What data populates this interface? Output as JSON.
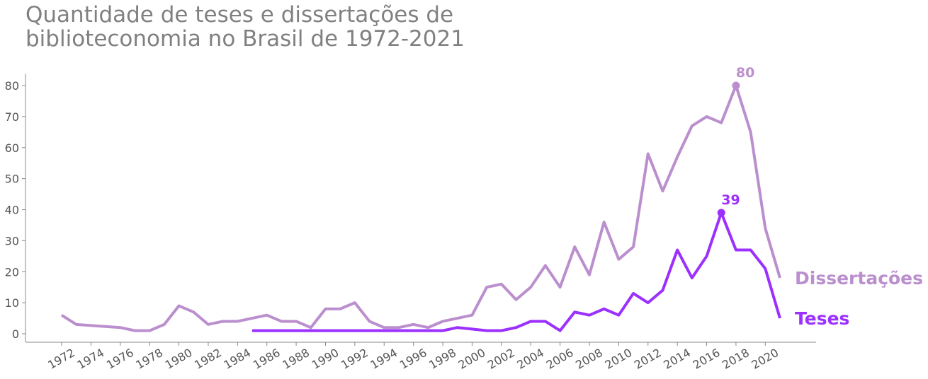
{
  "chart_data": {
    "type": "line",
    "title": "Quantidade de teses e dissertações de biblioteconomia no Brasil de 1972-2021",
    "xlabel": "",
    "ylabel": "",
    "xlim": [
      1972,
      2021
    ],
    "ylim": [
      0,
      80
    ],
    "yticks": [
      0,
      10,
      20,
      30,
      40,
      50,
      60,
      70,
      80
    ],
    "xticks": [
      "1972",
      "1974",
      "1976",
      "1978",
      "1980",
      "1982",
      "1984",
      "1986",
      "1988",
      "1990",
      "1992",
      "1994",
      "1996",
      "1998",
      "2000",
      "2002",
      "2004",
      "2006",
      "2008",
      "2010",
      "2012",
      "2014",
      "2016",
      "2018",
      "2020"
    ],
    "grid": false,
    "legend": "direct labels at right end of lines",
    "colors": {
      "dissertacoes": "#bb8fce",
      "teses": "#9b30ff",
      "axis": "#888888",
      "text": "#555555",
      "title": "#808080"
    },
    "series": [
      {
        "name": "Dissertações",
        "peak_label": "80",
        "points": [
          [
            1972,
            6
          ],
          [
            1973,
            3
          ],
          [
            1976,
            2
          ],
          [
            1977,
            1
          ],
          [
            1978,
            1
          ],
          [
            1979,
            3
          ],
          [
            1980,
            9
          ],
          [
            1981,
            7
          ],
          [
            1982,
            3
          ],
          [
            1983,
            4
          ],
          [
            1984,
            4
          ],
          [
            1985,
            5
          ],
          [
            1986,
            6
          ],
          [
            1987,
            4
          ],
          [
            1988,
            4
          ],
          [
            1989,
            2
          ],
          [
            1990,
            8
          ],
          [
            1991,
            8
          ],
          [
            1992,
            10
          ],
          [
            1993,
            4
          ],
          [
            1994,
            2
          ],
          [
            1995,
            2
          ],
          [
            1996,
            3
          ],
          [
            1997,
            2
          ],
          [
            1998,
            4
          ],
          [
            1999,
            5
          ],
          [
            2000,
            6
          ],
          [
            2001,
            15
          ],
          [
            2002,
            16
          ],
          [
            2003,
            11
          ],
          [
            2004,
            15
          ],
          [
            2005,
            22
          ],
          [
            2006,
            15
          ],
          [
            2007,
            28
          ],
          [
            2008,
            19
          ],
          [
            2009,
            36
          ],
          [
            2010,
            24
          ],
          [
            2011,
            28
          ],
          [
            2012,
            58
          ],
          [
            2013,
            46
          ],
          [
            2014,
            57
          ],
          [
            2015,
            67
          ],
          [
            2016,
            70
          ],
          [
            2017,
            68
          ],
          [
            2018,
            80
          ],
          [
            2019,
            65
          ],
          [
            2020,
            34
          ],
          [
            2021,
            18
          ]
        ]
      },
      {
        "name": "Teses",
        "peak_label": "39",
        "points": [
          [
            1985,
            1
          ],
          [
            1986,
            1
          ],
          [
            1987,
            1
          ],
          [
            1988,
            1
          ],
          [
            1989,
            1
          ],
          [
            1990,
            1
          ],
          [
            1991,
            1
          ],
          [
            1992,
            1
          ],
          [
            1993,
            1
          ],
          [
            1994,
            1
          ],
          [
            1995,
            1
          ],
          [
            1996,
            1
          ],
          [
            1997,
            1
          ],
          [
            1998,
            1
          ],
          [
            1999,
            2
          ],
          [
            2000,
            1.5
          ],
          [
            2001,
            1
          ],
          [
            2002,
            1
          ],
          [
            2003,
            2
          ],
          [
            2004,
            4
          ],
          [
            2005,
            4
          ],
          [
            2006,
            1
          ],
          [
            2007,
            7
          ],
          [
            2008,
            6
          ],
          [
            2009,
            8
          ],
          [
            2010,
            6
          ],
          [
            2011,
            13
          ],
          [
            2012,
            10
          ],
          [
            2013,
            14
          ],
          [
            2014,
            27
          ],
          [
            2015,
            18
          ],
          [
            2016,
            25
          ],
          [
            2017,
            39
          ],
          [
            2018,
            27
          ],
          [
            2019,
            27
          ],
          [
            2020,
            21
          ],
          [
            2021,
            5
          ]
        ]
      }
    ]
  }
}
